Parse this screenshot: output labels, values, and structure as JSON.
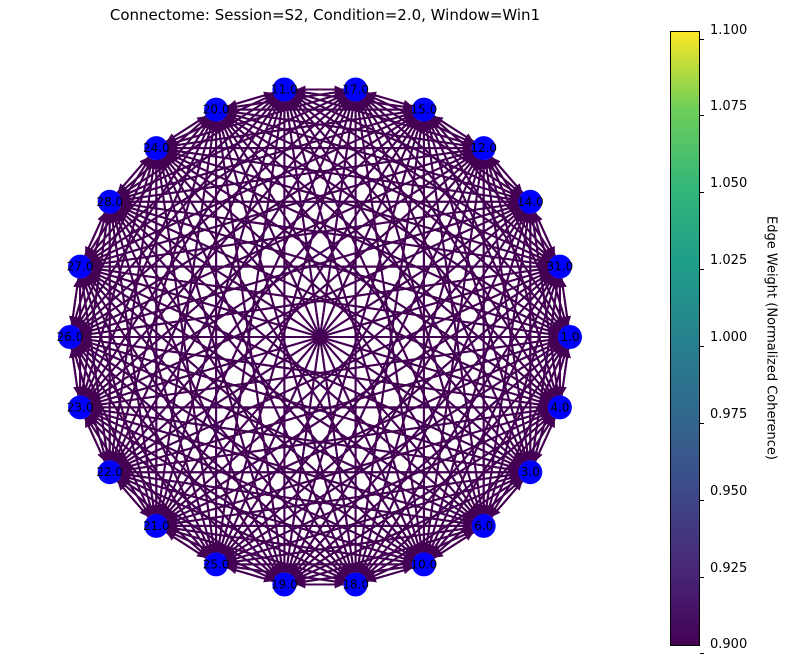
{
  "title": "Connectome: Session=S2, Condition=2.0, Window=Win1",
  "colorbar": {
    "label": "Edge Weight (Normalized Coherence)",
    "ticks": [
      "1.100",
      "1.075",
      "1.050",
      "1.025",
      "1.000",
      "0.975",
      "0.950",
      "0.925",
      "0.900"
    ]
  },
  "colors": {
    "node": "#0000ff",
    "edge": "#440154"
  },
  "nodes": [
    "1.0",
    "31.0",
    "14.0",
    "12.0",
    "15.0",
    "17.0",
    "11.0",
    "20.0",
    "24.0",
    "28.0",
    "27.0",
    "26.0",
    "23.0",
    "22.0",
    "21.0",
    "25.0",
    "19.0",
    "18.0",
    "10.0",
    "6.0",
    "3.0",
    "4.0"
  ]
}
